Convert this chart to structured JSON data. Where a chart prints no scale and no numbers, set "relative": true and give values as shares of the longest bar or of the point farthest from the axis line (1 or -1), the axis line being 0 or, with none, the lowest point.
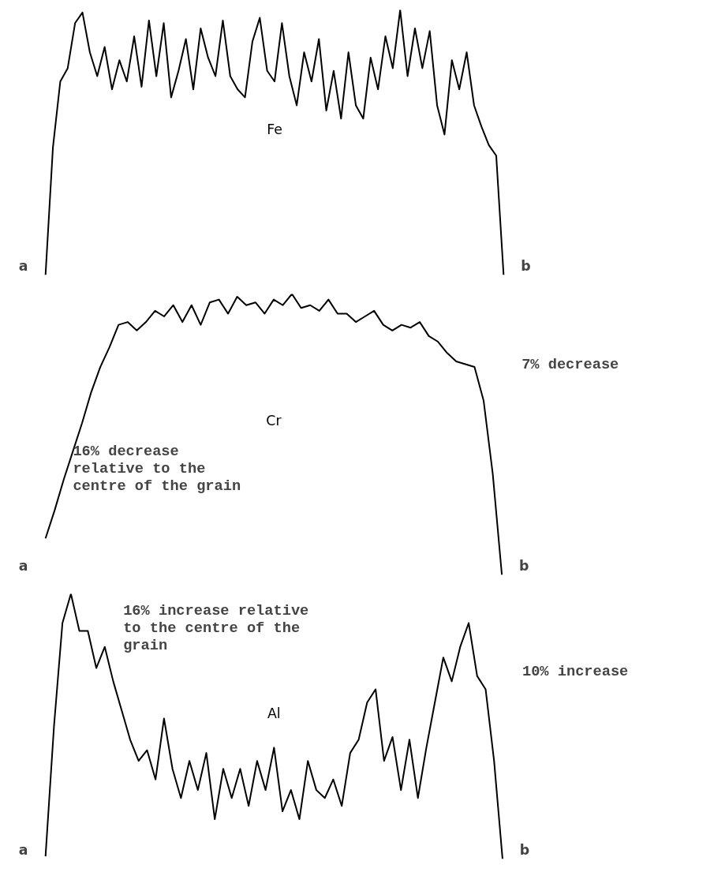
{
  "chart_data": [
    {
      "type": "line",
      "relative": true,
      "categories": [
        null,
        null,
        null,
        null,
        null,
        null,
        null,
        null,
        null,
        null,
        null,
        null,
        null,
        null,
        null,
        null,
        null,
        null,
        null,
        null,
        null,
        null,
        null,
        null,
        null,
        null,
        null,
        null,
        null,
        null,
        null,
        null,
        null,
        null,
        null,
        null,
        null,
        null,
        null,
        null,
        null,
        null,
        null,
        null,
        null,
        null,
        null,
        null,
        null,
        null,
        null,
        null,
        null,
        null,
        null,
        null,
        null,
        null,
        null,
        null,
        null,
        null,
        null
      ],
      "series": [
        {
          "name": "Fe",
          "color": "#000000",
          "values": [
            0.0,
            0.48,
            0.73,
            0.78,
            0.95,
            0.99,
            0.84,
            0.75,
            0.86,
            0.7,
            0.81,
            0.73,
            0.9,
            0.71,
            0.96,
            0.75,
            0.95,
            0.67,
            0.77,
            0.89,
            0.7,
            0.93,
            0.82,
            0.75,
            0.96,
            0.75,
            0.7,
            0.67,
            0.88,
            0.97,
            0.77,
            0.73,
            0.95,
            0.75,
            0.64,
            0.84,
            0.73,
            0.89,
            0.62,
            0.77,
            0.59,
            0.84,
            0.64,
            0.59,
            0.82,
            0.7,
            0.9,
            0.78,
            1.0,
            0.75,
            0.93,
            0.78,
            0.92,
            0.64,
            0.53,
            0.81,
            0.7,
            0.84,
            0.64,
            0.56,
            0.49,
            0.45,
            0.0
          ]
        }
      ],
      "annotations": [
        "a",
        "b"
      ]
    },
    {
      "type": "line",
      "relative": true,
      "categories": [
        null,
        null,
        null,
        null,
        null,
        null,
        null,
        null,
        null,
        null,
        null,
        null,
        null,
        null,
        null,
        null,
        null,
        null,
        null,
        null,
        null,
        null,
        null,
        null,
        null,
        null,
        null,
        null,
        null,
        null,
        null,
        null,
        null,
        null,
        null,
        null,
        null,
        null,
        null,
        null,
        null,
        null,
        null,
        null,
        null,
        null,
        null,
        null,
        null,
        null,
        null
      ],
      "series": [
        {
          "name": "Cr",
          "color": "#000000",
          "values": [
            0.13,
            0.23,
            0.34,
            0.44,
            0.54,
            0.65,
            0.74,
            0.81,
            0.89,
            0.9,
            0.87,
            0.9,
            0.94,
            0.92,
            0.96,
            0.9,
            0.96,
            0.89,
            0.97,
            0.98,
            0.93,
            0.99,
            0.96,
            0.97,
            0.93,
            0.98,
            0.96,
            1.0,
            0.95,
            0.96,
            0.94,
            0.98,
            0.93,
            0.93,
            0.9,
            0.92,
            0.94,
            0.89,
            0.87,
            0.89,
            0.88,
            0.9,
            0.85,
            0.83,
            0.79,
            0.76,
            0.75,
            0.74,
            0.62,
            0.36,
            0.0
          ]
        }
      ],
      "annotations": [
        "a",
        "b",
        "16% decrease\nrelative to the\ncentre of the grain",
        "7% decrease"
      ]
    },
    {
      "type": "line",
      "relative": true,
      "categories": [
        null,
        null,
        null,
        null,
        null,
        null,
        null,
        null,
        null,
        null,
        null,
        null,
        null,
        null,
        null,
        null,
        null,
        null,
        null,
        null,
        null,
        null,
        null,
        null,
        null,
        null,
        null,
        null,
        null,
        null,
        null,
        null,
        null,
        null,
        null,
        null,
        null,
        null,
        null,
        null,
        null,
        null,
        null,
        null,
        null,
        null,
        null,
        null,
        null,
        null,
        null,
        null,
        null,
        null,
        null
      ],
      "series": [
        {
          "name": "Al",
          "color": "#000000",
          "values": [
            0.01,
            0.5,
            0.89,
            1.0,
            0.86,
            0.86,
            0.72,
            0.8,
            0.67,
            0.56,
            0.45,
            0.37,
            0.41,
            0.3,
            0.53,
            0.34,
            0.23,
            0.37,
            0.26,
            0.4,
            0.15,
            0.34,
            0.23,
            0.34,
            0.2,
            0.37,
            0.26,
            0.42,
            0.18,
            0.26,
            0.15,
            0.37,
            0.26,
            0.23,
            0.3,
            0.2,
            0.4,
            0.45,
            0.59,
            0.64,
            0.37,
            0.46,
            0.26,
            0.45,
            0.23,
            0.42,
            0.59,
            0.76,
            0.67,
            0.8,
            0.89,
            0.69,
            0.64,
            0.37,
            0.0
          ]
        }
      ],
      "annotations": [
        "a",
        "b",
        "16% increase relative\nto the centre of the\ngrain",
        "10% increase"
      ]
    }
  ]
}
